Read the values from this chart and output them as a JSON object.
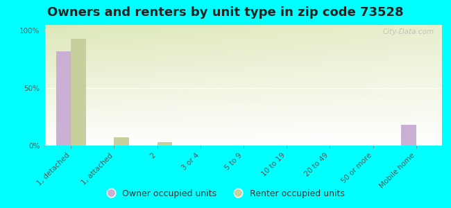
{
  "title": "Owners and renters by unit type in zip code 73528",
  "categories": [
    "1, detached",
    "1, attached",
    "2",
    "3 or 4",
    "5 to 9",
    "10 to 19",
    "20 to 49",
    "50 or more",
    "Mobile home"
  ],
  "owner_values": [
    82,
    0,
    0,
    0,
    0,
    0,
    0,
    0,
    18
  ],
  "renter_values": [
    93,
    7,
    3,
    0,
    0,
    0,
    0,
    0,
    0
  ],
  "owner_color": "#c9afd4",
  "renter_color": "#c8cf9e",
  "background_color": "#00ffff",
  "plot_bg_color": "#dde8b8",
  "ylabel_ticks": [
    "0%",
    "50%",
    "100%"
  ],
  "ytick_vals": [
    0,
    50,
    100
  ],
  "ylim": [
    0,
    105
  ],
  "bar_width": 0.35,
  "title_fontsize": 13,
  "tick_fontsize": 7.5,
  "legend_fontsize": 9,
  "watermark": "City-Data.com"
}
